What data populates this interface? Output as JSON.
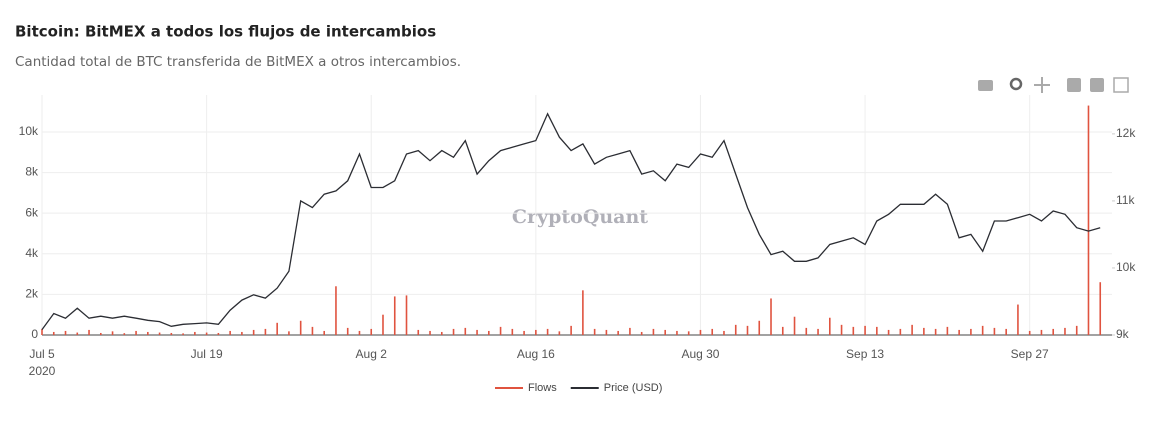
{
  "chart_data": {
    "type": "line",
    "title": "Bitcoin: BitMEX a todos los flujos de intercambios",
    "subtitle": "Cantidad total de BTC transferida de BitMEX a otros intercambios.",
    "watermark": "CryptoQuant",
    "start": "2020-07-05",
    "xlim": [
      "2020-07-05",
      "2020-10-04"
    ],
    "xticks": [
      {
        "value": "2020-07-05",
        "label": "Jul 5"
      },
      {
        "value": "2020-07-19",
        "label": "Jul 19"
      },
      {
        "value": "2020-08-02",
        "label": "Aug 2"
      },
      {
        "value": "2020-08-16",
        "label": "Aug 16"
      },
      {
        "value": "2020-08-30",
        "label": "Aug 30"
      },
      {
        "value": "2020-09-13",
        "label": "Sep 13"
      },
      {
        "value": "2020-09-27",
        "label": "Sep 27"
      }
    ],
    "x_year": "2020",
    "ylim": [
      0,
      11820
    ],
    "yticks": [
      {
        "value": 0,
        "label": "0"
      },
      {
        "value": 2000,
        "label": "2k"
      },
      {
        "value": 4000,
        "label": "4k"
      },
      {
        "value": 6000,
        "label": "6k"
      },
      {
        "value": 8000,
        "label": "8k"
      },
      {
        "value": 10000,
        "label": "10k"
      }
    ],
    "y2lim": [
      9000,
      12580
    ],
    "y2ticks": [
      {
        "value": 9000,
        "label": "9k"
      },
      {
        "value": 10000,
        "label": "10k"
      },
      {
        "value": 11000,
        "label": "11k"
      },
      {
        "value": 12000,
        "label": "12k"
      }
    ],
    "grid": true,
    "legend": "bottom",
    "series": [
      {
        "name": "Flows",
        "color": "#e0533f",
        "style": "bar",
        "values": [
          300,
          150,
          200,
          120,
          250,
          100,
          180,
          90,
          200,
          150,
          120,
          100,
          80,
          150,
          120,
          100,
          200,
          150,
          250,
          300,
          600,
          180,
          700,
          400,
          200,
          2400,
          350,
          200,
          300,
          1000,
          1900,
          1950,
          250,
          200,
          150,
          300,
          350,
          250,
          200,
          400,
          300,
          200,
          250,
          300,
          180,
          450,
          2200,
          300,
          250,
          200,
          350,
          150,
          300,
          250,
          200,
          180,
          250,
          300,
          200,
          500,
          450,
          700,
          1800,
          400,
          900,
          350,
          300,
          850,
          500,
          400,
          450,
          400,
          250,
          300,
          500,
          350,
          300,
          400,
          250,
          300,
          450,
          350,
          300,
          1500,
          200,
          250,
          300,
          350,
          450,
          11300,
          2600
        ]
      },
      {
        "name": "Price (USD)",
        "color": "#2b2d33",
        "style": "line",
        "axis": "y2",
        "values": [
          9080,
          9320,
          9250,
          9400,
          9250,
          9280,
          9250,
          9280,
          9250,
          9220,
          9200,
          9130,
          9160,
          9170,
          9180,
          9160,
          9370,
          9520,
          9600,
          9550,
          9700,
          9950,
          11000,
          10900,
          11100,
          11150,
          11300,
          11700,
          11200,
          11200,
          11300,
          11700,
          11750,
          11600,
          11750,
          11650,
          11900,
          11400,
          11600,
          11750,
          11800,
          11850,
          11900,
          12300,
          11950,
          11750,
          11850,
          11550,
          11650,
          11700,
          11750,
          11400,
          11450,
          11300,
          11550,
          11500,
          11700,
          11650,
          11900,
          11400,
          10900,
          10500,
          10200,
          10250,
          10100,
          10100,
          10150,
          10350,
          10400,
          10450,
          10350,
          10700,
          10800,
          10950,
          10950,
          10950,
          11100,
          10950,
          10450,
          10500,
          10250,
          10700,
          10700,
          10750,
          10800,
          10700,
          10850,
          10800,
          10600,
          10550,
          10600
        ]
      }
    ]
  }
}
